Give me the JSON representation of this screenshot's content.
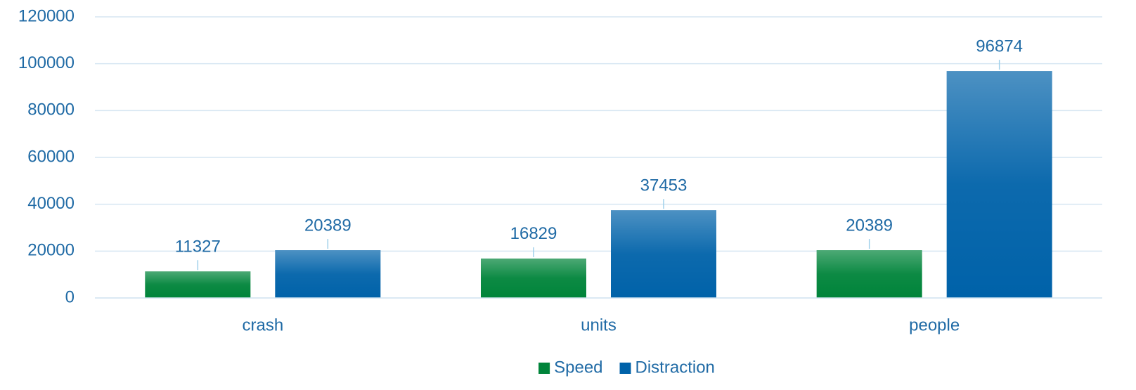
{
  "chart_data": {
    "type": "bar",
    "categories": [
      "crash",
      "units",
      "people"
    ],
    "series": [
      {
        "name": "Speed",
        "color": "#00843a",
        "values": [
          11327,
          16829,
          20389
        ]
      },
      {
        "name": "Distraction",
        "color": "#0062a9",
        "values": [
          20389,
          37453,
          96874
        ]
      }
    ],
    "ylim": [
      0,
      120000
    ],
    "yticks": [
      0,
      20000,
      40000,
      60000,
      80000,
      100000,
      120000
    ],
    "grid": true,
    "legend": "bottom"
  }
}
